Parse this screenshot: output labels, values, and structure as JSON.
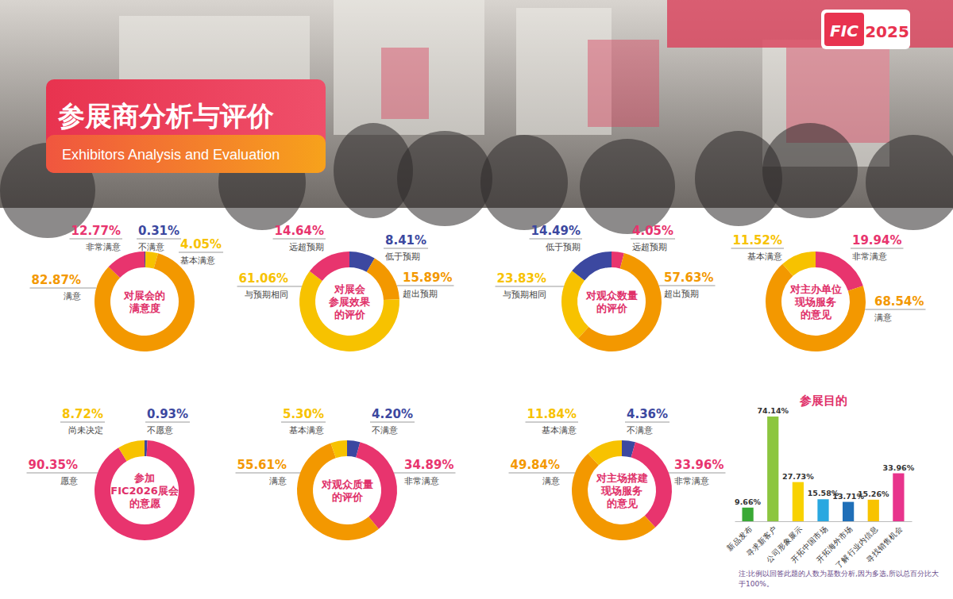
{
  "header": {
    "title": "参展商分析与评价",
    "subtitle": "Exhibitors Analysis and Evaluation",
    "logo": "FIC",
    "year": "2025"
  },
  "chart_data": [
    {
      "type": "donut",
      "title": [
        "对展会的",
        "满意度"
      ],
      "categories": [
        "不满意",
        "基本满意",
        "满意",
        "非常满意"
      ],
      "values": [
        0.31,
        4.05,
        82.87,
        12.77
      ],
      "value_labels": [
        "0.31%",
        "4.05%",
        "82.87%",
        "12.77%"
      ],
      "colors": [
        "#3c48a0",
        "#f7c200",
        "#f39800",
        "#e8346e"
      ],
      "data_labels": true
    },
    {
      "type": "donut",
      "title": [
        "对展会",
        "参展效果",
        "的评价"
      ],
      "categories": [
        "低于预期",
        "超出预期",
        "与预期相同",
        "远超预期"
      ],
      "values": [
        8.41,
        15.89,
        61.06,
        14.64
      ],
      "value_labels": [
        "8.41%",
        "15.89%",
        "61.06%",
        "14.64%"
      ],
      "colors": [
        "#3c48a0",
        "#f39800",
        "#f7c200",
        "#e8346e"
      ],
      "data_labels": true
    },
    {
      "type": "donut",
      "title": [
        "对观众数量",
        "的评价"
      ],
      "categories": [
        "远超预期",
        "超出预期",
        "与预期相同",
        "低于预期"
      ],
      "values": [
        4.05,
        57.63,
        23.83,
        14.49
      ],
      "value_labels": [
        "4.05%",
        "57.63%",
        "23.83%",
        "14.49%"
      ],
      "colors": [
        "#e8346e",
        "#f39800",
        "#f7c200",
        "#3c48a0"
      ],
      "data_labels": true
    },
    {
      "type": "donut",
      "title": [
        "对主办单位",
        "现场服务",
        "的意见"
      ],
      "categories": [
        "非常满意",
        "满意",
        "基本满意"
      ],
      "values": [
        19.94,
        68.54,
        11.52
      ],
      "value_labels": [
        "19.94%",
        "68.54%",
        "11.52%"
      ],
      "colors": [
        "#e8346e",
        "#f39800",
        "#f7c200"
      ],
      "data_labels": true
    },
    {
      "type": "donut",
      "title": [
        "参加",
        "FIC2026展会",
        "的意愿"
      ],
      "categories": [
        "不愿意",
        "愿意",
        "尚未决定"
      ],
      "values": [
        0.93,
        90.35,
        8.72
      ],
      "value_labels": [
        "0.93%",
        "90.35%",
        "8.72%"
      ],
      "colors": [
        "#3c48a0",
        "#e8346e",
        "#f7c200"
      ],
      "data_labels": true
    },
    {
      "type": "donut",
      "title": [
        "对观众质量",
        "的评价"
      ],
      "categories": [
        "不满意",
        "非常满意",
        "满意",
        "基本满意"
      ],
      "values": [
        4.2,
        34.89,
        55.61,
        5.3
      ],
      "value_labels": [
        "4.20%",
        "34.89%",
        "55.61%",
        "5.30%"
      ],
      "colors": [
        "#3c48a0",
        "#e8346e",
        "#f39800",
        "#f7c200"
      ],
      "data_labels": true
    },
    {
      "type": "donut",
      "title": [
        "对主场搭建",
        "现场服务",
        "的意见"
      ],
      "categories": [
        "不满意",
        "非常满意",
        "满意",
        "基本满意"
      ],
      "values": [
        4.36,
        33.96,
        49.84,
        11.84
      ],
      "value_labels": [
        "4.36%",
        "33.96%",
        "49.84%",
        "11.84%"
      ],
      "colors": [
        "#3c48a0",
        "#e8346e",
        "#f39800",
        "#f7c200"
      ],
      "data_labels": true
    },
    {
      "type": "bar",
      "title": "参展目的",
      "categories": [
        "新品发布",
        "寻求新客户",
        "公司形象展示",
        "开拓中国市场",
        "开拓海外市场",
        "了解行业内信息",
        "寻找销售机会"
      ],
      "values": [
        9.66,
        74.14,
        27.73,
        15.58,
        13.71,
        15.26,
        33.96
      ],
      "value_labels": [
        "9.66%",
        "74.14%",
        "27.73%",
        "15.58%",
        "13.71%",
        "15.26%",
        "33.96%"
      ],
      "colors": [
        "#3aa935",
        "#8cc63f",
        "#f8d200",
        "#29a8e0",
        "#1f6fb8",
        "#f8c300",
        "#e8348c"
      ],
      "ylim": [
        0,
        74.14
      ],
      "tick_labels": "x",
      "data_labels": true,
      "note": "注:比例以回答此题的人数为基数分析,因为多选,所以总百分比大于100%。"
    }
  ]
}
